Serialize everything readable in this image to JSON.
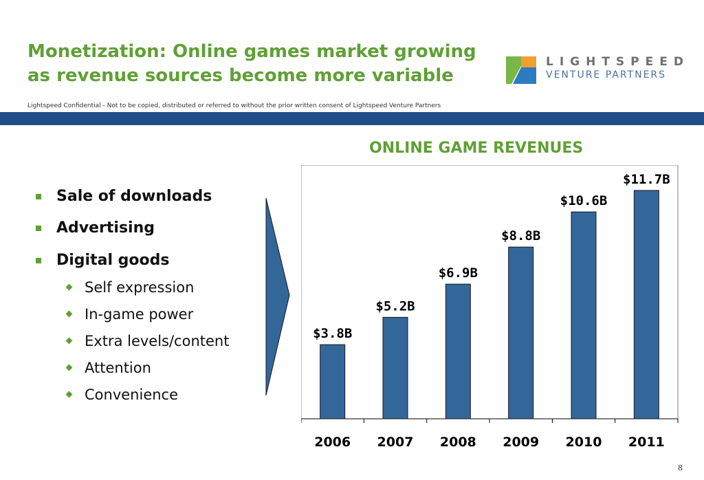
{
  "slide": {
    "title_line1": "Monetization: Online games market growing",
    "title_line2": "as revenue sources become more variable",
    "confidential": "Lightspeed Confidential - Not to be copied, distributed or referred to without the prior written consent of Lightspeed Venture Partners",
    "page_number": "8"
  },
  "logo": {
    "line1": "LIGHTSPEED",
    "line2": "VENTURE PARTNERS",
    "colors": {
      "green": "#7ab648",
      "orange": "#f0a030",
      "blue": "#2e7cc0"
    }
  },
  "bullets": {
    "primary": [
      "Sale of downloads",
      "Advertising",
      "Digital goods"
    ],
    "secondary": [
      "Self expression",
      "In-game power",
      "Extra levels/content",
      "Attention",
      "Convenience"
    ]
  },
  "colors": {
    "accent": "#5fa035",
    "bar": "#336699",
    "band": "#1f4e89"
  },
  "chart_data": {
    "type": "bar",
    "title": "ONLINE GAME REVENUES",
    "categories": [
      "2006",
      "2007",
      "2008",
      "2009",
      "2010",
      "2011"
    ],
    "values": [
      3.8,
      5.2,
      6.9,
      8.8,
      10.6,
      11.7
    ],
    "labels": [
      "$3.8B",
      "$5.2B",
      "$6.9B",
      "$8.8B",
      "$10.6B",
      "$11.7B"
    ],
    "unit": "$B",
    "ylim": [
      0,
      13
    ],
    "grid": false
  }
}
